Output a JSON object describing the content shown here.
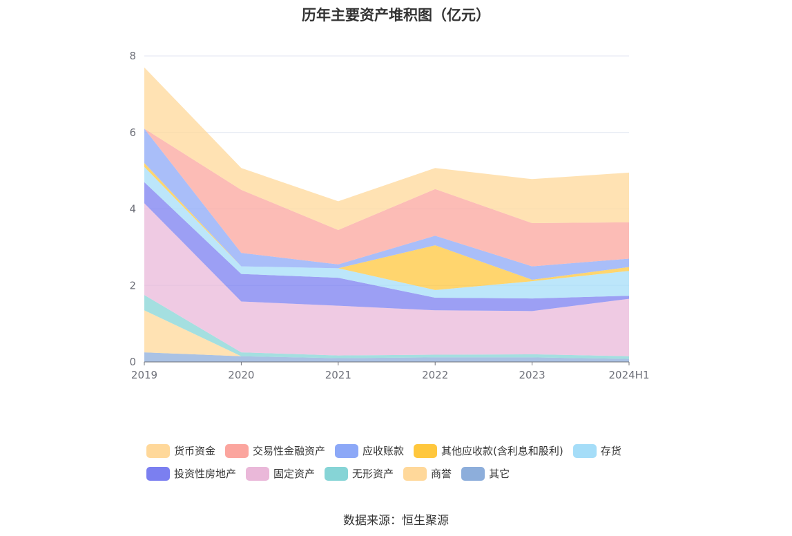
{
  "source": "数据来源：恒生聚源",
  "chart_data": {
    "type": "area",
    "stacked": true,
    "title": "历年主要资产堆积图（亿元）",
    "x": [
      "2019",
      "2020",
      "2021",
      "2022",
      "2023",
      "2024H1"
    ],
    "ylim": [
      0,
      8
    ],
    "yticks": [
      "0",
      "2",
      "4",
      "6",
      "8"
    ],
    "grid": true,
    "legend_position": "bottom",
    "series": [
      {
        "name": "其它",
        "color": "#8daedb",
        "values": [
          0.25,
          0.15,
          0.1,
          0.12,
          0.12,
          0.08
        ]
      },
      {
        "name": "商誉",
        "color": "#ffd89a",
        "values": [
          1.1,
          0.0,
          0.0,
          0.0,
          0.0,
          0.0
        ]
      },
      {
        "name": "无形资产",
        "color": "#86d4d6",
        "values": [
          0.4,
          0.1,
          0.07,
          0.07,
          0.08,
          0.07
        ]
      },
      {
        "name": "固定资产",
        "color": "#eab8d9",
        "values": [
          2.4,
          1.33,
          1.3,
          1.16,
          1.13,
          1.5
        ]
      },
      {
        "name": "投资性房地产",
        "color": "#7b7ff0",
        "values": [
          0.55,
          0.72,
          0.73,
          0.33,
          0.33,
          0.08
        ]
      },
      {
        "name": "存货",
        "color": "#a5ddf8",
        "values": [
          0.4,
          0.2,
          0.25,
          0.2,
          0.45,
          0.65
        ]
      },
      {
        "name": "其他应收款(含利息和股利)",
        "color": "#ffc73d",
        "values": [
          0.1,
          0.0,
          0.0,
          1.17,
          0.04,
          0.1
        ]
      },
      {
        "name": "应收账款",
        "color": "#8ca8f7",
        "values": [
          0.9,
          0.35,
          0.1,
          0.25,
          0.35,
          0.22
        ]
      },
      {
        "name": "交易性金融资产",
        "color": "#fba59e",
        "values": [
          0.0,
          1.65,
          0.9,
          1.22,
          1.13,
          0.95
        ]
      },
      {
        "name": "货币资金",
        "color": "#ffd89a",
        "values": [
          1.6,
          0.57,
          0.75,
          0.55,
          1.15,
          1.3
        ]
      }
    ]
  },
  "legend": {
    "row1": [
      "货币资金",
      "交易性金融资产",
      "应收账款",
      "其他应收款(含利息和股利)",
      "存货"
    ],
    "row2": [
      "投资性房地产",
      "固定资产",
      "无形资产",
      "商誉",
      "其它"
    ]
  }
}
